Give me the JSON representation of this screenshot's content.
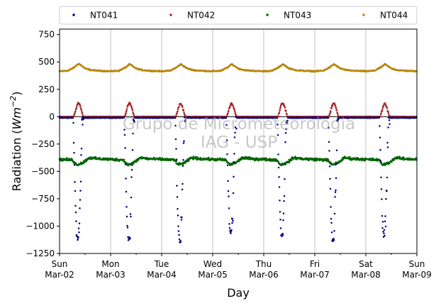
{
  "chart_data": {
    "type": "scatter",
    "title": "",
    "xlabel": "Day",
    "ylabel": "Radiation (Wm⁻²)",
    "ylabel_parts": {
      "prefix": "Radiation (",
      "unit_base": "Wm",
      "unit_exp": "−2",
      "suffix": ")"
    },
    "ylim": [
      -1250,
      800
    ],
    "yticks": [
      -1250,
      -1000,
      -750,
      -500,
      -250,
      0,
      250,
      500,
      750
    ],
    "ytick_labels": [
      "−1250",
      "−1000",
      "−750",
      "−500",
      "−250",
      "0",
      "250",
      "500",
      "750"
    ],
    "xlim": [
      "2025-03-02 00:00",
      "2025-03-09 00:00"
    ],
    "xticks": [
      {
        "weekday": "Sun",
        "date": "Mar-02"
      },
      {
        "weekday": "Mon",
        "date": "Mar-03"
      },
      {
        "weekday": "Tue",
        "date": "Mar-04"
      },
      {
        "weekday": "Wed",
        "date": "Mar-05"
      },
      {
        "weekday": "Thu",
        "date": "Mar-06"
      },
      {
        "weekday": "Fri",
        "date": "Mar-07"
      },
      {
        "weekday": "Sat",
        "date": "Mar-08"
      },
      {
        "weekday": "Sun",
        "date": "Mar-09"
      }
    ],
    "grid": "vertical",
    "legend_placement": "top, above plot, 4 columns",
    "watermark": [
      "Grupo de Micrometeorologia",
      "IAG - USP"
    ],
    "series": [
      {
        "name": "NT041",
        "color": "#000080",
        "marker": "point",
        "night_level": -10,
        "day_start_hour": 6.4,
        "day_end_hour": 11.3,
        "daily_min": [
          -1140,
          -1130,
          -1155,
          -1080,
          -1100,
          -1145,
          -1100
        ]
      },
      {
        "name": "NT042",
        "color": "#a52a2a",
        "marker": "point",
        "night_level": 0,
        "day_start_hour": 6.6,
        "day_end_hour": 11.2,
        "daily_peak": [
          120,
          125,
          118,
          120,
          122,
          118,
          115
        ]
      },
      {
        "name": "NT043",
        "color": "#006400",
        "marker": "point",
        "daily_profile_hours": [
          0,
          6,
          8,
          11,
          14,
          18,
          24
        ],
        "daily_profile_values": [
          -390,
          -395,
          -440,
          -420,
          -375,
          -385,
          -390
        ]
      },
      {
        "name": "NT044",
        "color": "#b8860b",
        "marker": "point",
        "daily_profile_hours": [
          0,
          4,
          7,
          9,
          12,
          15,
          18,
          24
        ],
        "daily_profile_values": [
          415,
          420,
          450,
          480,
          440,
          425,
          420,
          415
        ],
        "first_day_peak": 485
      }
    ]
  }
}
